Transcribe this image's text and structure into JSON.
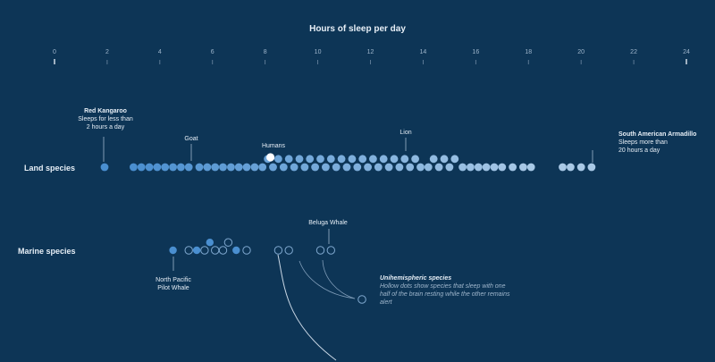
{
  "chart_data": {
    "type": "scatter",
    "title": "Hours of sleep per day",
    "xlim": [
      0,
      24
    ],
    "ticks": [
      "0",
      "2",
      "4",
      "6",
      "8",
      "10",
      "12",
      "14",
      "16",
      "18",
      "20",
      "22",
      "24"
    ],
    "grid": false,
    "colors": {
      "background": "#0d3556",
      "land_dot": "#4a8fd0",
      "land_dot_light": "#a9c9e6",
      "highlight": "#ffffff",
      "text": "#e6eef6",
      "muted": "#9fb6cc"
    },
    "rows": {
      "land": "Land species",
      "marine": "Marine species"
    },
    "land_species_hours": [
      1.9,
      3.0,
      3.3,
      3.6,
      3.9,
      4.2,
      4.5,
      4.8,
      5.1,
      5.5,
      5.8,
      6.1,
      6.4,
      6.7,
      7.0,
      7.3,
      7.6,
      7.9,
      8.1,
      8.3,
      8.5,
      8.7,
      8.9,
      9.1,
      9.3,
      9.5,
      9.7,
      9.9,
      10.1,
      10.3,
      10.5,
      10.7,
      10.9,
      11.1,
      11.3,
      11.5,
      11.7,
      11.9,
      12.1,
      12.3,
      12.5,
      12.7,
      12.9,
      13.1,
      13.3,
      13.5,
      13.7,
      13.9,
      14.2,
      14.4,
      14.6,
      14.8,
      15.0,
      15.2,
      15.5,
      15.8,
      16.1,
      16.4,
      16.7,
      17.0,
      17.4,
      17.8,
      18.1,
      19.3,
      19.6,
      20.0,
      20.4
    ],
    "marine_species": [
      {
        "hours": 4.5,
        "unihemispheric": false
      },
      {
        "hours": 5.1,
        "unihemispheric": true
      },
      {
        "hours": 5.4,
        "unihemispheric": false
      },
      {
        "hours": 5.7,
        "unihemispheric": true
      },
      {
        "hours": 5.9,
        "unihemispheric": false
      },
      {
        "hours": 6.1,
        "unihemispheric": true
      },
      {
        "hours": 6.4,
        "unihemispheric": true
      },
      {
        "hours": 6.6,
        "unihemispheric": true
      },
      {
        "hours": 6.9,
        "unihemispheric": false
      },
      {
        "hours": 7.3,
        "unihemispheric": true
      },
      {
        "hours": 8.5,
        "unihemispheric": true
      },
      {
        "hours": 8.9,
        "unihemispheric": true
      },
      {
        "hours": 10.1,
        "unihemispheric": true
      },
      {
        "hours": 10.5,
        "unihemispheric": true
      }
    ],
    "highlight": {
      "name": "Humans",
      "hours": 8.2
    },
    "annotations": {
      "red_kangaroo_title": "Red Kangaroo",
      "red_kangaroo_line1": "Sleeps for less than",
      "red_kangaroo_line2": "2 hours a day",
      "goat": "Goat",
      "humans": "Humans",
      "lion": "Lion",
      "armadillo_title": "South American Armadillo",
      "armadillo_line1": "Sleeps more than",
      "armadillo_line2": "20 hours a day",
      "beluga": "Beluga Whale",
      "pilot_line1": "North Pacific",
      "pilot_line2": "Pilot Whale",
      "uni_title": "Unihemispheric species",
      "uni_line1": "Hollow dots show species that sleep with one",
      "uni_line2": "half of the brain resting while the other remains",
      "uni_line3": "alert"
    }
  }
}
